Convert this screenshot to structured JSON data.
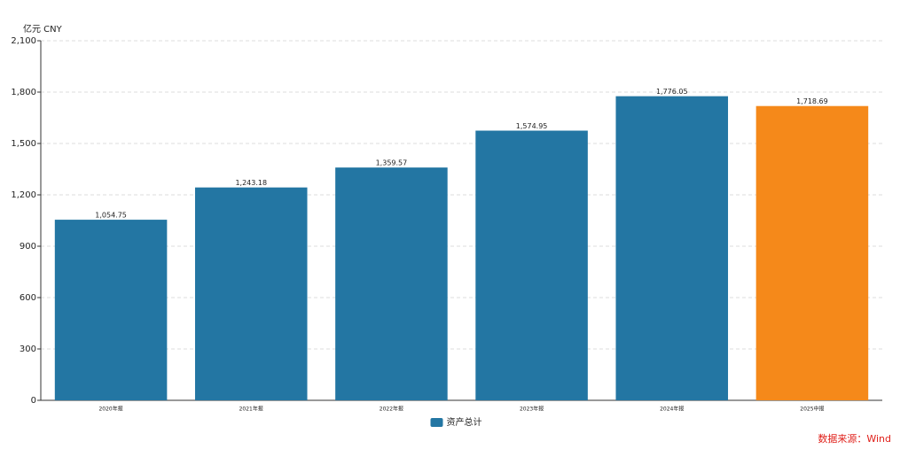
{
  "chart_data": {
    "type": "bar",
    "unit_label": "亿元  CNY",
    "categories": [
      "2020年报",
      "2021年报",
      "2022年报",
      "2023年报",
      "2024年报",
      "2025中报"
    ],
    "series": [
      {
        "name": "资产总计",
        "color": "#2376a3",
        "colors": [
          "#2376a3",
          "#2376a3",
          "#2376a3",
          "#2376a3",
          "#2376a3",
          "#f5891a"
        ],
        "values": [
          1054.75,
          1243.18,
          1359.57,
          1574.95,
          1776.05,
          1718.69
        ],
        "value_labels": [
          "1,054.75",
          "1,243.18",
          "1,359.57",
          "1,574.95",
          "1,776.05",
          "1,718.69"
        ]
      }
    ],
    "ylim": [
      0,
      2100
    ],
    "yticks": [
      0,
      300,
      600,
      900,
      {
        "value": 1200,
        "label": "1,200"
      },
      {
        "value": 1500,
        "label": "1,500"
      },
      {
        "value": 1800,
        "label": "1,800"
      },
      {
        "value": 2100,
        "label": "2,100"
      }
    ],
    "grid": true,
    "legend": "bottom",
    "source": "数据来源：Wind"
  }
}
